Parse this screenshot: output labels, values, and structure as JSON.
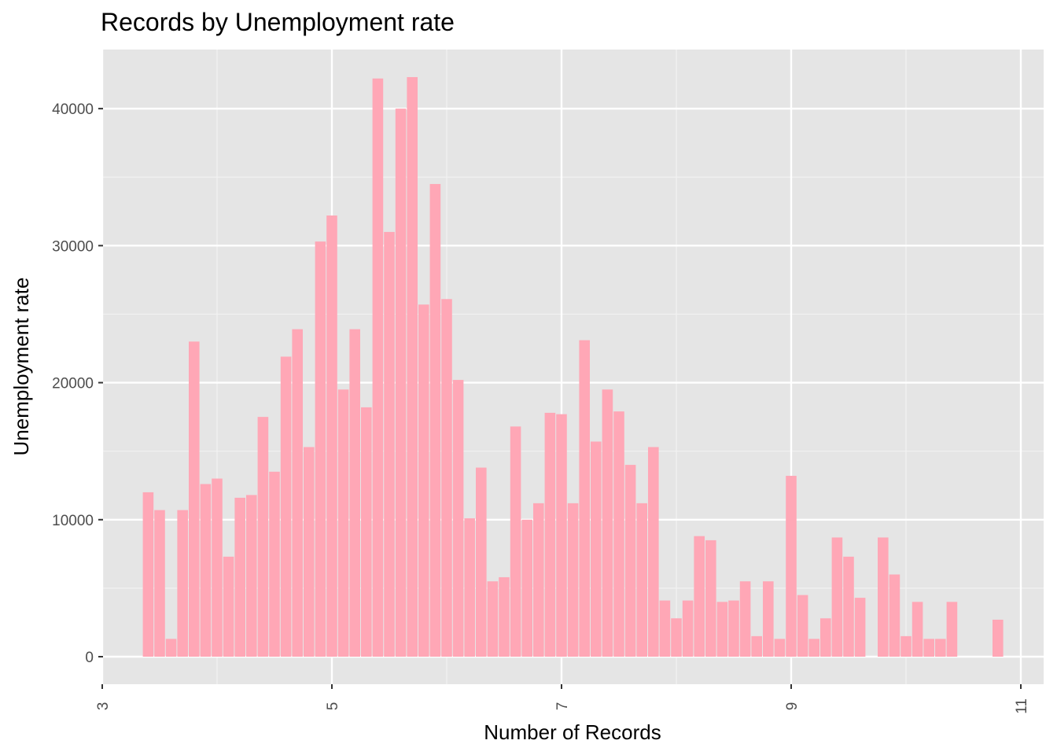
{
  "chart_data": {
    "type": "bar",
    "title": "Records by Unemployment rate",
    "xlabel": "Number of Records",
    "ylabel": "Unemployment rate",
    "xlim": [
      3,
      11
    ],
    "ylim": [
      0,
      43000
    ],
    "xticks": [
      3,
      5,
      7,
      9,
      11
    ],
    "xtick_labels": [
      "3",
      "5",
      "7",
      "9",
      "11"
    ],
    "yticks": [
      0,
      10000,
      20000,
      30000,
      40000
    ],
    "ytick_labels": [
      "0",
      "10000",
      "20000",
      "30000",
      "40000"
    ],
    "grid": true,
    "bar_color": "#ffa7b6",
    "panel_color": "#e5e5e5",
    "bin_width": 0.1,
    "x": [
      3.4,
      3.5,
      3.6,
      3.7,
      3.8,
      3.9,
      4.0,
      4.1,
      4.2,
      4.3,
      4.4,
      4.5,
      4.6,
      4.7,
      4.8,
      4.9,
      5.0,
      5.1,
      5.2,
      5.3,
      5.4,
      5.5,
      5.6,
      5.7,
      5.8,
      5.9,
      6.0,
      6.1,
      6.2,
      6.3,
      6.4,
      6.5,
      6.6,
      6.7,
      6.8,
      6.9,
      7.0,
      7.1,
      7.2,
      7.3,
      7.4,
      7.5,
      7.6,
      7.7,
      7.8,
      7.9,
      8.0,
      8.1,
      8.2,
      8.3,
      8.4,
      8.5,
      8.6,
      8.7,
      8.8,
      8.9,
      9.0,
      9.1,
      9.2,
      9.3,
      9.4,
      9.5,
      9.6,
      9.8,
      9.9,
      10.0,
      10.1,
      10.2,
      10.3,
      10.4,
      10.8
    ],
    "values": [
      12000,
      10700,
      1300,
      10700,
      23000,
      12600,
      13000,
      7300,
      11600,
      11800,
      17500,
      13500,
      21900,
      23900,
      15300,
      30300,
      32200,
      19500,
      23900,
      18200,
      42200,
      31000,
      40000,
      42300,
      25700,
      34500,
      26100,
      20200,
      10100,
      13800,
      5500,
      5800,
      16800,
      10000,
      11200,
      17800,
      17700,
      11200,
      23100,
      15700,
      19500,
      17900,
      14000,
      11200,
      15300,
      4100,
      2800,
      4100,
      8800,
      8500,
      4000,
      4100,
      5500,
      1500,
      5500,
      1300,
      13200,
      4500,
      1300,
      2800,
      8700,
      7300,
      4300,
      8700,
      6000,
      1500,
      4000,
      1300,
      1300,
      4000,
      2700
    ]
  }
}
